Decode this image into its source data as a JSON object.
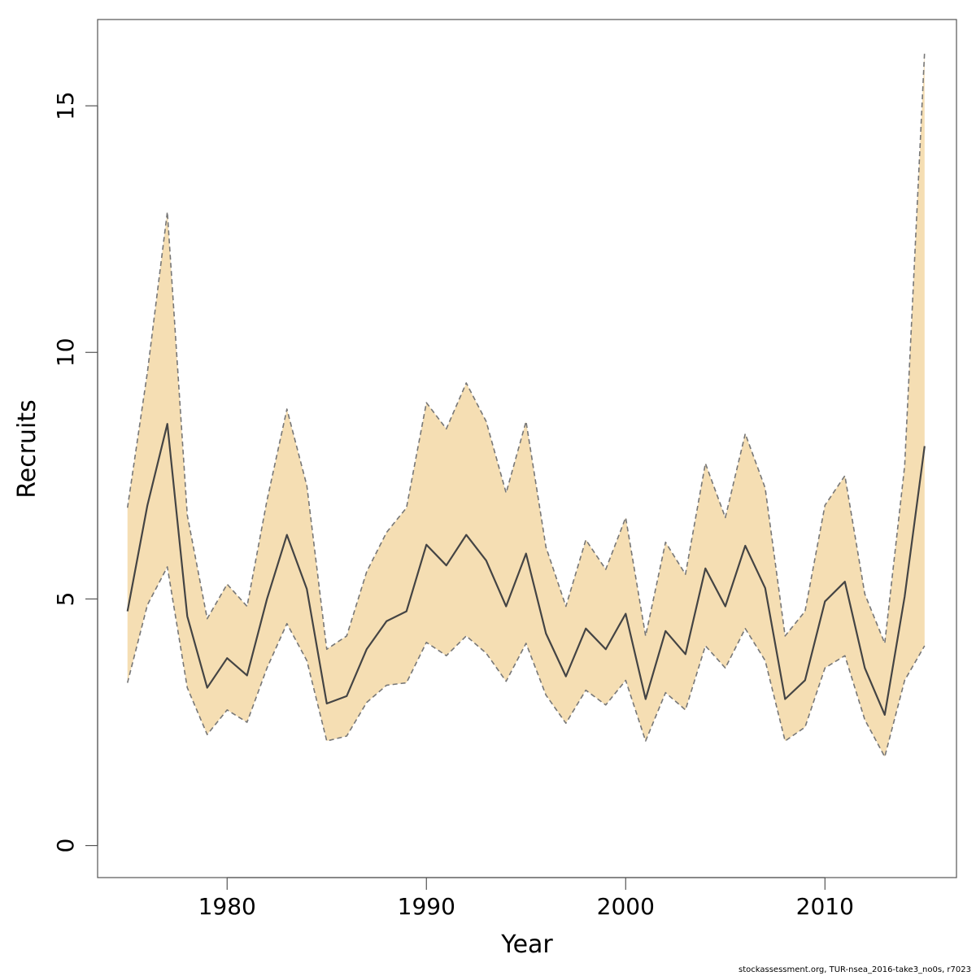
{
  "chart_data": {
    "type": "line",
    "title": "",
    "xlabel": "Year",
    "ylabel": "Recruits",
    "xlim": [
      1973.5,
      2016.6
    ],
    "ylim": [
      -0.65,
      16.75
    ],
    "x_ticks": [
      1980,
      1990,
      2000,
      2010
    ],
    "y_ticks": [
      0,
      5,
      10,
      15
    ],
    "grid": false,
    "legend": "none",
    "colors": {
      "band_fill": "#F5DEB3",
      "median_line": "#444444",
      "bound_line": "#777777",
      "axis": "#555555"
    },
    "x": [
      1975,
      1976,
      1977,
      1978,
      1979,
      1980,
      1981,
      1982,
      1983,
      1984,
      1985,
      1986,
      1987,
      1988,
      1989,
      1990,
      1991,
      1992,
      1993,
      1994,
      1995,
      1996,
      1997,
      1998,
      1999,
      2000,
      2001,
      2002,
      2003,
      2004,
      2005,
      2006,
      2007,
      2008,
      2009,
      2010,
      2011,
      2012,
      2013,
      2014,
      2015
    ],
    "series": [
      {
        "values": [
          4.75,
          6.9,
          8.55,
          4.65,
          3.2,
          3.8,
          3.45,
          5.0,
          6.3,
          5.2,
          2.88,
          3.03,
          3.98,
          4.55,
          4.75,
          6.1,
          5.68,
          6.3,
          5.78,
          4.85,
          5.92,
          4.3,
          3.43,
          4.4,
          3.98,
          4.7,
          2.97,
          4.35,
          3.88,
          5.62,
          4.85,
          6.08,
          5.22,
          2.97,
          3.35,
          4.95,
          5.35,
          3.6,
          2.65,
          5.05,
          8.1
        ]
      },
      {
        "values": [
          6.85,
          9.6,
          12.85,
          6.7,
          4.6,
          5.3,
          4.85,
          7.0,
          8.85,
          7.3,
          3.98,
          4.25,
          5.55,
          6.35,
          6.85,
          8.98,
          8.45,
          9.38,
          8.6,
          7.15,
          8.6,
          6.05,
          4.85,
          6.2,
          5.6,
          6.65,
          4.25,
          6.15,
          5.5,
          7.75,
          6.65,
          8.35,
          7.25,
          4.25,
          4.75,
          6.9,
          7.5,
          5.1,
          4.1,
          7.7,
          16.1
        ]
      },
      {
        "values": [
          3.3,
          4.88,
          5.65,
          3.2,
          2.25,
          2.75,
          2.5,
          3.6,
          4.5,
          3.75,
          2.12,
          2.22,
          2.9,
          3.25,
          3.3,
          4.12,
          3.85,
          4.25,
          3.9,
          3.33,
          4.1,
          3.05,
          2.48,
          3.15,
          2.85,
          3.35,
          2.12,
          3.1,
          2.75,
          4.05,
          3.6,
          4.4,
          3.75,
          2.12,
          2.4,
          3.6,
          3.85,
          2.55,
          1.8,
          3.35,
          4.05
        ]
      }
    ]
  },
  "footer": "stockassessment.org, TUR-nsea_2016-take3_no0s, r7023"
}
